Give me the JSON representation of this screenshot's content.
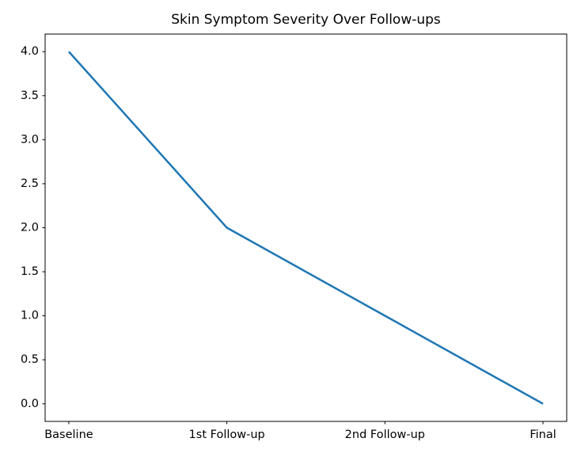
{
  "chart_data": {
    "type": "line",
    "title": "Skin Symptom Severity Over Follow-ups",
    "categories": [
      "Baseline",
      "1st Follow-up",
      "2nd Follow-up",
      "Final"
    ],
    "x": [
      0,
      1,
      2,
      3
    ],
    "values": [
      4.0,
      2.0,
      1.0,
      0.0
    ],
    "series": [
      {
        "name": "Skin Symptom Severity",
        "values": [
          4.0,
          2.0,
          1.0,
          0.0
        ]
      }
    ],
    "xlabel": "",
    "ylabel": "",
    "ylim": [
      0.0,
      4.0
    ],
    "xlim_categories": [
      0,
      3
    ],
    "yticks": [
      0.0,
      0.5,
      1.0,
      1.5,
      2.0,
      2.5,
      3.0,
      3.5,
      4.0
    ],
    "ytick_labels": [
      "0.0",
      "0.5",
      "1.0",
      "1.5",
      "2.0",
      "2.5",
      "3.0",
      "3.5",
      "4.0"
    ],
    "grid": false,
    "legend_visible": false,
    "line_color": "#1f77b4",
    "axis_color": "#000000",
    "background_color": "#ffffff"
  }
}
